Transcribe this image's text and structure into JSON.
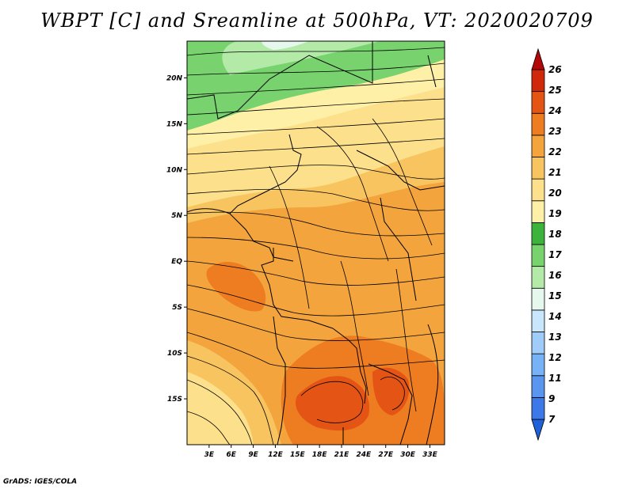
{
  "title": "WBPT [C] and Sreamline at 500hPa, VT: 2020020709",
  "footer": "GrADS: IGES/COLA",
  "map": {
    "lon_range": [
      0,
      35
    ],
    "lat_range": [
      -20,
      24
    ],
    "lon_ticks": [
      "3E",
      "6E",
      "9E",
      "12E",
      "15E",
      "18E",
      "21E",
      "24E",
      "27E",
      "30E",
      "33E"
    ],
    "lon_tick_values": [
      3,
      6,
      9,
      12,
      15,
      18,
      21,
      24,
      27,
      30,
      33
    ],
    "lat_ticks": [
      "20N",
      "15N",
      "10N",
      "5N",
      "EQ",
      "5S",
      "10S",
      "15S"
    ],
    "lat_tick_values": [
      20,
      15,
      10,
      5,
      0,
      -5,
      -10,
      -15
    ]
  },
  "colorbar": {
    "labels": [
      "7",
      "9",
      "11",
      "12",
      "13",
      "14",
      "15",
      "16",
      "17",
      "18",
      "19",
      "20",
      "21",
      "22",
      "23",
      "24",
      "25",
      "26"
    ],
    "colors": [
      "#2060d8",
      "#3c78e8",
      "#5a96f0",
      "#78b2f6",
      "#a0ccfa",
      "#c8e6fc",
      "#e6f8ee",
      "#b4eaa8",
      "#78d26e",
      "#3cb43c",
      "#fff0a8",
      "#fce08c",
      "#f8c460",
      "#f4a43c",
      "#ee7c20",
      "#e45414",
      "#d0280a",
      "#b40808"
    ]
  },
  "chart_data": {
    "type": "heatmap",
    "title": "WBPT [C] and Sreamline at 500hPa, VT: 2020020709",
    "variable": "WBPT [C]",
    "levels": [
      7,
      9,
      11,
      12,
      13,
      14,
      15,
      16,
      17,
      18,
      19,
      20,
      21,
      22,
      23,
      24,
      25,
      26
    ],
    "x_range": [
      0,
      35
    ],
    "y_range": [
      -20,
      24
    ],
    "regions": [
      {
        "name": "green-north",
        "wbpt_range": [
          16,
          18
        ]
      },
      {
        "name": "pale-yellow-sahel",
        "wbpt_range": [
          19,
          20
        ]
      },
      {
        "name": "orange-central",
        "wbpt_range": [
          21,
          22
        ]
      },
      {
        "name": "deep-orange-south",
        "wbpt_range": [
          23,
          24
        ]
      }
    ]
  }
}
